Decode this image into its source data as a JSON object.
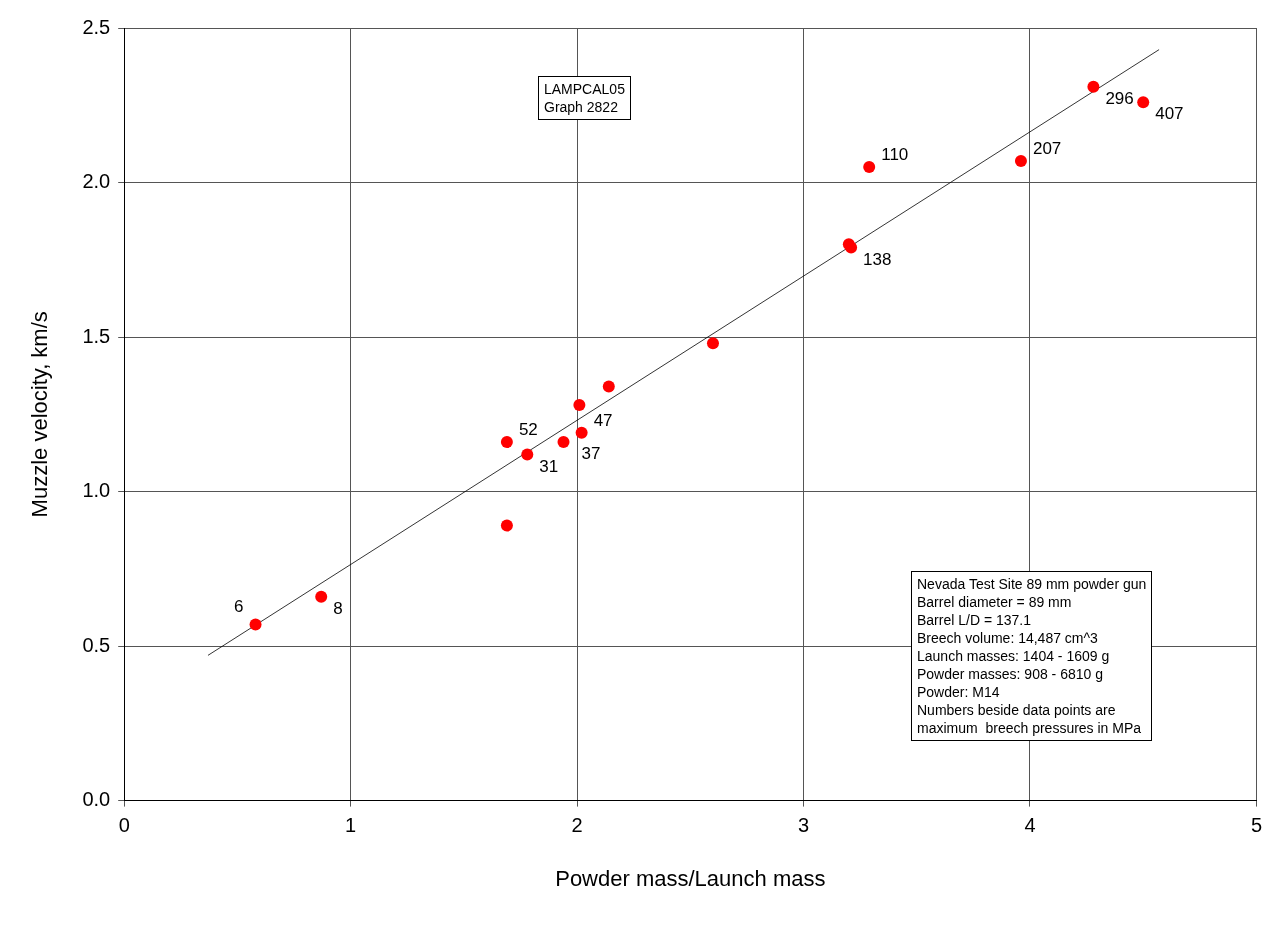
{
  "chart_data": {
    "type": "scatter",
    "xlabel": "Powder mass/Launch mass",
    "ylabel": "Muzzle velocity, km/s",
    "xlim": [
      0,
      5
    ],
    "xticks": [
      0,
      1,
      2,
      3,
      4,
      5
    ],
    "ylim": [
      0,
      2.5
    ],
    "yticks": [
      {
        "value": 0,
        "label": "0.0"
      },
      {
        "value": 0.5,
        "label": "0.5"
      },
      {
        "value": 1,
        "label": "1.0"
      },
      {
        "value": 1.5,
        "label": "1.5"
      },
      {
        "value": 2,
        "label": "2.0"
      },
      {
        "value": 2.5,
        "label": "2.5"
      }
    ],
    "grid": true,
    "legend": false,
    "series": [
      {
        "marker": "circle",
        "color": "#ff0000",
        "x": [
          0.58,
          0.87,
          1.69,
          1.69,
          1.78,
          1.94,
          2.01,
          2.02,
          2.14,
          2.6,
          3.2,
          3.21,
          3.29,
          3.96,
          4.28,
          4.5
        ],
        "values": [
          0.57,
          0.66,
          1.16,
          0.89,
          1.12,
          1.16,
          1.28,
          1.19,
          1.34,
          1.48,
          1.8,
          1.79,
          2.05,
          2.07,
          2.31,
          2.26
        ]
      },
      {
        "type": "line",
        "color": "#000000",
        "x": [
          0.37,
          4.57
        ],
        "values": [
          0.47,
          2.43
        ]
      }
    ],
    "annotations": [
      "LAMPCAL05\nGraph 2822",
      "Nevada Test Site 89 mm powder gun\nBarrel diameter = 89 mm\nBarrel L/D = 137.1\nBreech volume: 14,487 cm^3\nLaunch masses: 1404 - 1609 g\nPowder masses: 908 - 6810 g\nPowder: M14\nNumbers beside data points are\nmaximum  breech pressures in MPa",
      {
        "text": "6",
        "x": 0.58,
        "y": 0.57
      },
      {
        "text": "8",
        "x": 0.87,
        "y": 0.66
      },
      {
        "text": "52",
        "x": 1.69,
        "y": 1.16
      },
      {
        "text": "31",
        "x": 1.78,
        "y": 1.12
      },
      {
        "text": "37",
        "x": 1.94,
        "y": 1.16
      },
      {
        "text": "47",
        "x": 2.02,
        "y": 1.19
      },
      {
        "text": "138",
        "x": 3.21,
        "y": 1.79
      },
      {
        "text": "110",
        "x": 3.29,
        "y": 2.05
      },
      {
        "text": "207",
        "x": 3.96,
        "y": 2.07
      },
      {
        "text": "296",
        "x": 4.28,
        "y": 2.31
      },
      {
        "text": "407",
        "x": 4.5,
        "y": 2.26
      }
    ]
  }
}
